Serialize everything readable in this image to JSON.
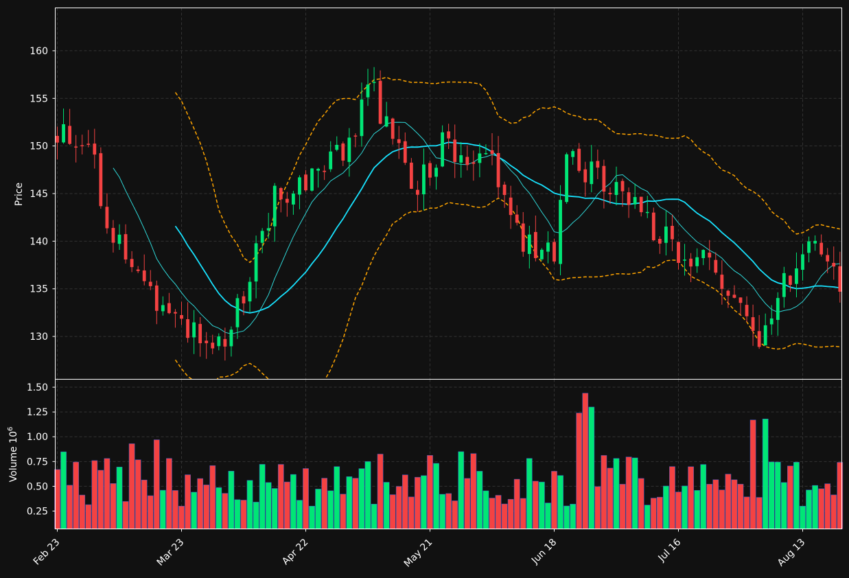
{
  "chart_data": [
    {
      "type": "candlestick",
      "ylabel": "Price",
      "ylim": [
        125.5,
        164.5
      ],
      "yticks": [
        "130",
        "135",
        "140",
        "145",
        "150",
        "155",
        "160"
      ],
      "xticks": [
        "Feb 23",
        "Mar 23",
        "Apr 22",
        "May 21",
        "Jun 18",
        "Jul 16",
        "Aug 13"
      ],
      "xtick_positions": [
        0,
        20,
        40,
        60,
        80,
        100,
        120
      ],
      "grid": true,
      "overlays": [
        "moving-average-short",
        "moving-average-long",
        "bollinger-bands"
      ],
      "colors": {
        "up": "#00e676",
        "down": "#f44242",
        "ma_long": "#18e3ff",
        "ma_short": "#2fd9d9",
        "bands": "#ffa500",
        "grid": "#333333",
        "background": "#111111"
      }
    },
    {
      "type": "bar",
      "ylabel": "Volume  10",
      "ylabel_exponent": "6",
      "ylim": [
        0.07,
        1.58
      ],
      "yticks": [
        "0.25",
        "0.50",
        "0.75",
        "1.00",
        "1.25",
        "1.50"
      ]
    }
  ]
}
